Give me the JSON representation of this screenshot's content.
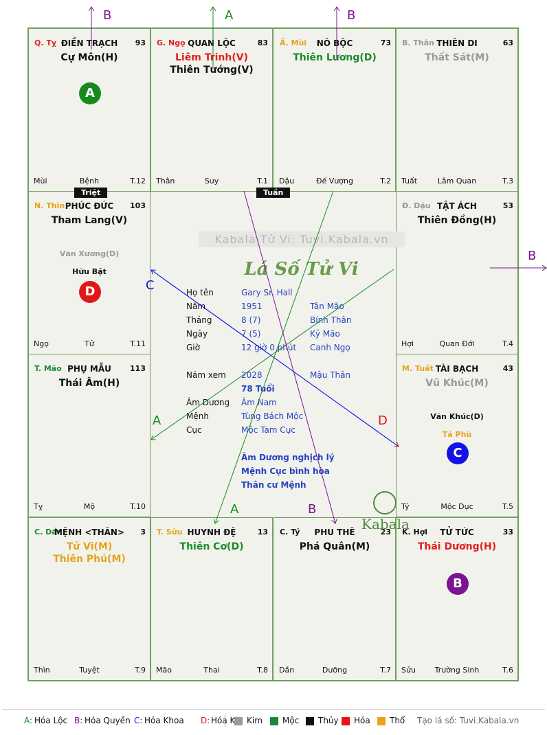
{
  "palaces": [
    {
      "id": "ty",
      "stem": "Q. Tỵ",
      "stem_color": "#d22",
      "name": "ĐIỀN TRẠCH",
      "num": "93",
      "stars": [
        {
          "t": "Cự Môn(H)",
          "c": "#111"
        }
      ],
      "minors": [],
      "phase": "Bệnh",
      "branch": "Mùi",
      "tnum": "T.12"
    },
    {
      "id": "ngo",
      "stem": "G. Ngọ",
      "stem_color": "#d22",
      "name": "QUAN LỘC",
      "num": "83",
      "stars": [
        {
          "t": "Liêm Trinh(V)",
          "c": "#e12020"
        },
        {
          "t": "Thiên Tướng(V)",
          "c": "#111"
        }
      ],
      "minors": [],
      "phase": "Suy",
      "branch": "Thân",
      "tnum": "T.1"
    },
    {
      "id": "mui",
      "stem": "Ấ. Mùi",
      "stem_color": "#e8a21a",
      "name": "NÔ BỘC",
      "num": "73",
      "stars": [
        {
          "t": "Thiên Lương(D)",
          "c": "#1a8a2a"
        }
      ],
      "minors": [],
      "phase": "Đế Vượng",
      "branch": "Dậu",
      "tnum": "T.2"
    },
    {
      "id": "than",
      "stem": "B. Thân",
      "stem_color": "#999",
      "name": "THIÊN DI",
      "num": "63",
      "stars": [
        {
          "t": "Thất Sát(M)",
          "c": "#999"
        }
      ],
      "minors": [],
      "phase": "Lâm Quan",
      "branch": "Tuất",
      "tnum": "T.3"
    },
    {
      "id": "thin",
      "stem": "N. Thìn",
      "stem_color": "#e8a21a",
      "name": "PHÚC ĐỨC",
      "num": "103",
      "stars": [
        {
          "t": "Tham Lang(V)",
          "c": "#111"
        }
      ],
      "minors": [
        {
          "t": "Văn Xương(D)",
          "c": "#999"
        },
        {
          "t": "Hữu Bật",
          "c": "#111"
        }
      ],
      "phase": "Tử",
      "branch": "Ngọ",
      "tnum": "T.11"
    },
    {
      "id": "dau",
      "stem": "Đ. Dậu",
      "stem_color": "#999",
      "name": "TẬT ÁCH",
      "num": "53",
      "stars": [
        {
          "t": "Thiên Đồng(H)",
          "c": "#111"
        }
      ],
      "minors": [],
      "phase": "Quan Đới",
      "branch": "Hợi",
      "tnum": "T.4"
    },
    {
      "id": "mao",
      "stem": "T. Mão",
      "stem_color": "#1a8a2a",
      "name": "PHỤ MẪU",
      "num": "113",
      "stars": [
        {
          "t": "Thái Âm(H)",
          "c": "#111"
        }
      ],
      "minors": [],
      "phase": "Mộ",
      "branch": "Tỵ",
      "tnum": "T.10"
    },
    {
      "id": "tuat",
      "stem": "M. Tuất",
      "stem_color": "#e8a21a",
      "name": "TÀI BẠCH",
      "num": "43",
      "stars": [
        {
          "t": "Vũ Khúc(M)",
          "c": "#999"
        }
      ],
      "minors": [
        {
          "t": "Văn Khúc(D)",
          "c": "#111"
        },
        {
          "t": "Tả Phù",
          "c": "#e8a21a"
        }
      ],
      "phase": "Mộc Dục",
      "branch": "Tý",
      "tnum": "T.5"
    },
    {
      "id": "dan",
      "stem": "C. Dần",
      "stem_color": "#1a8a2a",
      "name": "MỆNH <THÂN>",
      "num": "3",
      "stars": [
        {
          "t": "Tử Vi(M)",
          "c": "#e8a21a"
        },
        {
          "t": "Thiên Phủ(M)",
          "c": "#e8a21a"
        }
      ],
      "minors": [],
      "phase": "Tuyệt",
      "branch": "Thìn",
      "tnum": "T.9"
    },
    {
      "id": "suu",
      "stem": "T. Sửu",
      "stem_color": "#e8a21a",
      "name": "HUYNH ĐỆ",
      "num": "13",
      "stars": [
        {
          "t": "Thiên Cơ(D)",
          "c": "#1a8a2a"
        }
      ],
      "minors": [],
      "phase": "Thai",
      "branch": "Mão",
      "tnum": "T.8"
    },
    {
      "id": "tyrat",
      "stem": "C. Tý",
      "stem_color": "#111",
      "name": "PHU THÊ",
      "num": "23",
      "stars": [
        {
          "t": "Phá Quân(M)",
          "c": "#111"
        }
      ],
      "minors": [],
      "phase": "Dưỡng",
      "branch": "Dần",
      "tnum": "T.7"
    },
    {
      "id": "hoi",
      "stem": "K. Hợi",
      "stem_color": "#111",
      "name": "TỬ TỨC",
      "num": "33",
      "stars": [
        {
          "t": "Thái Dương(H)",
          "c": "#e12020"
        }
      ],
      "minors": [],
      "phase": "Trường Sinh",
      "branch": "Sửu",
      "tnum": "T.6"
    }
  ],
  "circles": [
    {
      "palace": "ty",
      "letter": "A",
      "color": "#178a1e"
    },
    {
      "palace": "thin",
      "letter": "D",
      "color": "#e01818"
    },
    {
      "palace": "tuat",
      "letter": "C",
      "color": "#1313e8"
    },
    {
      "palace": "hoi",
      "letter": "B",
      "color": "#7a1490"
    }
  ],
  "tags": {
    "triet": "Triệt",
    "tuan": "Tuần"
  },
  "center": {
    "watermark": "Kabala Tử Vi: Tuvi.Kabala.vn",
    "title": "Lá Số Tử Vi",
    "rows": [
      {
        "label": "Họ tên",
        "v1": "Gary Sr. Hall",
        "v2": ""
      },
      {
        "label": "Năm",
        "v1": "1951",
        "v2": "Tân Mão"
      },
      {
        "label": "Tháng",
        "v1": "8  (7)",
        "v2": "Bính Thân"
      },
      {
        "label": "Ngày",
        "v1": "7  (5)",
        "v2": "Kỷ Mão"
      },
      {
        "label": "Giờ",
        "v1": "12 giờ 0 phút",
        "v2": "Canh Ngọ"
      },
      {
        "label": "Năm xem",
        "v1": "2028",
        "v2": "Mậu Thân"
      },
      {
        "label": "",
        "v1": "78 Tuổi",
        "v2": ""
      },
      {
        "label": "Âm Dương",
        "v1": "Âm Nam",
        "v2": ""
      },
      {
        "label": "Mệnh",
        "v1": "Tùng Bách Mộc",
        "v2": ""
      },
      {
        "label": "Cục",
        "v1": "Mộc Tam Cục",
        "v2": ""
      }
    ],
    "notes": [
      "Âm Dương nghịch lý",
      "Mệnh Cục bình hòa",
      "Thân cư Mệnh"
    ],
    "brand": "Kabala"
  },
  "arrow_labels": [
    {
      "t": "B",
      "c": "#7a1490"
    },
    {
      "t": "A",
      "c": "#178a1e"
    },
    {
      "t": "B",
      "c": "#7a1490"
    },
    {
      "t": "B",
      "c": "#7a1490"
    },
    {
      "t": "C",
      "c": "#1313e8"
    },
    {
      "t": "A",
      "c": "#178a1e"
    },
    {
      "t": "D",
      "c": "#e01818"
    },
    {
      "t": "A",
      "c": "#178a1e"
    },
    {
      "t": "B",
      "c": "#7a1490"
    }
  ],
  "legend": {
    "items": [
      {
        "k": "A:",
        "v": "Hóa Lộc",
        "c": "#178a1e"
      },
      {
        "k": "B:",
        "v": "Hóa Quyền",
        "c": "#7a1490"
      },
      {
        "k": "C:",
        "v": "Hóa Khoa",
        "c": "#1313e8"
      },
      {
        "k": "D:",
        "v": "Hóa Kị",
        "c": "#e01818"
      }
    ],
    "elements": [
      {
        "v": "Kim",
        "c": "#999999"
      },
      {
        "v": "Mộc",
        "c": "#178a3a"
      },
      {
        "v": "Thủy",
        "c": "#111111"
      },
      {
        "v": "Hỏa",
        "c": "#ee1111"
      },
      {
        "v": "Thổ",
        "c": "#f0a010"
      }
    ],
    "site": "Tạo lá số: Tuvi.Kabala.vn"
  }
}
